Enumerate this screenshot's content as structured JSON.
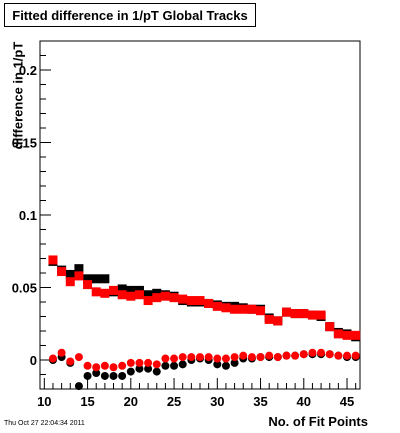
{
  "chart_data": {
    "type": "scatter",
    "title": "Fitted difference in 1/pT  Global Tracks",
    "xlabel": "No. of Fit Points",
    "ylabel": "difference in 1/pT",
    "xlim": [
      9.5,
      46.5
    ],
    "ylim": [
      -0.02,
      0.22
    ],
    "x_ticks": [
      "10",
      "15",
      "20",
      "25",
      "30",
      "35",
      "40",
      "45"
    ],
    "y_ticks": [
      "0",
      "0.05",
      "0.1",
      "0.15",
      "0.2"
    ],
    "grid": false,
    "series": [
      {
        "marker": "square",
        "color": "#000000",
        "points": [
          [
            11,
            0.068
          ],
          [
            12,
            0.062
          ],
          [
            13,
            0.059
          ],
          [
            14,
            0.063
          ],
          [
            15,
            0.056
          ],
          [
            16,
            0.056
          ],
          [
            17,
            0.056
          ],
          [
            18,
            0.047
          ],
          [
            19,
            0.049
          ],
          [
            20,
            0.048
          ],
          [
            21,
            0.048
          ],
          [
            22,
            0.045
          ],
          [
            23,
            0.046
          ],
          [
            24,
            0.045
          ],
          [
            25,
            0.044
          ],
          [
            26,
            0.041
          ],
          [
            27,
            0.04
          ],
          [
            28,
            0.04
          ],
          [
            29,
            0.039
          ],
          [
            30,
            0.038
          ],
          [
            31,
            0.037
          ],
          [
            32,
            0.037
          ],
          [
            33,
            0.036
          ],
          [
            34,
            0.035
          ],
          [
            35,
            0.035
          ],
          [
            36,
            0.029
          ],
          [
            37,
            0.027
          ],
          [
            38,
            0.033
          ],
          [
            39,
            0.032
          ],
          [
            40,
            0.032
          ],
          [
            41,
            0.031
          ],
          [
            42,
            0.03
          ],
          [
            43,
            0.023
          ],
          [
            44,
            0.019
          ],
          [
            45,
            0.018
          ],
          [
            46,
            0.016
          ]
        ]
      },
      {
        "marker": "square",
        "color": "#ff0000",
        "points": [
          [
            11,
            0.069
          ],
          [
            12,
            0.061
          ],
          [
            13,
            0.054
          ],
          [
            14,
            0.058
          ],
          [
            15,
            0.052
          ],
          [
            16,
            0.047
          ],
          [
            17,
            0.046
          ],
          [
            18,
            0.048
          ],
          [
            19,
            0.045
          ],
          [
            20,
            0.044
          ],
          [
            21,
            0.045
          ],
          [
            22,
            0.041
          ],
          [
            23,
            0.043
          ],
          [
            24,
            0.044
          ],
          [
            25,
            0.043
          ],
          [
            26,
            0.042
          ],
          [
            27,
            0.041
          ],
          [
            28,
            0.041
          ],
          [
            29,
            0.039
          ],
          [
            30,
            0.037
          ],
          [
            31,
            0.036
          ],
          [
            32,
            0.035
          ],
          [
            33,
            0.035
          ],
          [
            34,
            0.035
          ],
          [
            35,
            0.034
          ],
          [
            36,
            0.028
          ],
          [
            37,
            0.027
          ],
          [
            38,
            0.033
          ],
          [
            39,
            0.032
          ],
          [
            40,
            0.032
          ],
          [
            41,
            0.031
          ],
          [
            42,
            0.031
          ],
          [
            43,
            0.023
          ],
          [
            44,
            0.018
          ],
          [
            45,
            0.017
          ],
          [
            46,
            0.017
          ]
        ]
      },
      {
        "marker": "circle",
        "color": "#000000",
        "points": [
          [
            11,
            0.0
          ],
          [
            12,
            0.002
          ],
          [
            13,
            -0.002
          ],
          [
            14,
            -0.018
          ],
          [
            15,
            -0.011
          ],
          [
            16,
            -0.009
          ],
          [
            17,
            -0.011
          ],
          [
            18,
            -0.011
          ],
          [
            19,
            -0.011
          ],
          [
            20,
            -0.008
          ],
          [
            21,
            -0.006
          ],
          [
            22,
            -0.006
          ],
          [
            23,
            -0.008
          ],
          [
            24,
            -0.004
          ],
          [
            25,
            -0.004
          ],
          [
            26,
            -0.003
          ],
          [
            27,
            0.0
          ],
          [
            28,
            0.001
          ],
          [
            29,
            0.0
          ],
          [
            30,
            -0.003
          ],
          [
            31,
            -0.004
          ],
          [
            32,
            -0.002
          ],
          [
            33,
            0.001
          ],
          [
            34,
            0.001
          ],
          [
            35,
            0.002
          ],
          [
            36,
            0.002
          ],
          [
            37,
            0.002
          ],
          [
            38,
            0.003
          ],
          [
            39,
            0.003
          ],
          [
            40,
            0.004
          ],
          [
            41,
            0.004
          ],
          [
            42,
            0.004
          ],
          [
            43,
            0.004
          ],
          [
            44,
            0.003
          ],
          [
            45,
            0.002
          ],
          [
            46,
            0.002
          ]
        ]
      },
      {
        "marker": "circle",
        "color": "#ff0000",
        "points": [
          [
            11,
            0.001
          ],
          [
            12,
            0.005
          ],
          [
            13,
            -0.001
          ],
          [
            14,
            0.002
          ],
          [
            15,
            -0.004
          ],
          [
            16,
            -0.005
          ],
          [
            17,
            -0.004
          ],
          [
            18,
            -0.005
          ],
          [
            19,
            -0.004
          ],
          [
            20,
            -0.002
          ],
          [
            21,
            -0.002
          ],
          [
            22,
            -0.002
          ],
          [
            23,
            -0.003
          ],
          [
            24,
            0.001
          ],
          [
            25,
            0.001
          ],
          [
            26,
            0.002
          ],
          [
            27,
            0.002
          ],
          [
            28,
            0.002
          ],
          [
            29,
            0.002
          ],
          [
            30,
            0.001
          ],
          [
            31,
            0.001
          ],
          [
            32,
            0.002
          ],
          [
            33,
            0.003
          ],
          [
            34,
            0.002
          ],
          [
            35,
            0.002
          ],
          [
            36,
            0.003
          ],
          [
            37,
            0.002
          ],
          [
            38,
            0.003
          ],
          [
            39,
            0.003
          ],
          [
            40,
            0.004
          ],
          [
            41,
            0.005
          ],
          [
            42,
            0.005
          ],
          [
            43,
            0.004
          ],
          [
            44,
            0.003
          ],
          [
            45,
            0.003
          ],
          [
            46,
            0.003
          ]
        ]
      }
    ]
  },
  "footer": {
    "timestamp": "Thu Oct 27 22:04:34 2011"
  }
}
